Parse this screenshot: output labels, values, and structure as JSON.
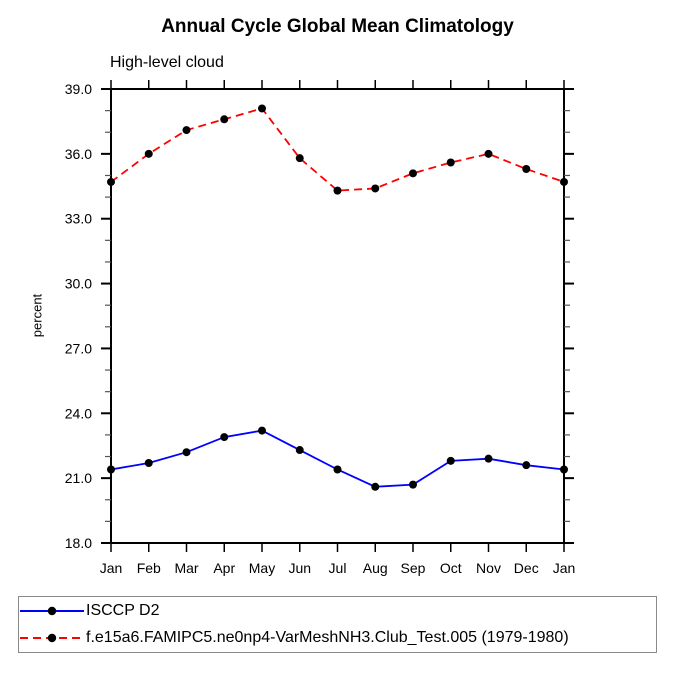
{
  "window": {
    "background": "#ffffff"
  },
  "chart_data": {
    "type": "line",
    "title": "Annual Cycle Global Mean Climatology",
    "subtitle": "High-level cloud",
    "ylabel": "percent",
    "xlabel": "",
    "categories": [
      "Jan",
      "Feb",
      "Mar",
      "Apr",
      "May",
      "Jun",
      "Jul",
      "Aug",
      "Sep",
      "Oct",
      "Nov",
      "Dec",
      "Jan"
    ],
    "ylim": [
      18.0,
      39.0
    ],
    "yticks": [
      39.0,
      36.0,
      33.0,
      30.0,
      27.0,
      24.0,
      21.0,
      18.0
    ],
    "y_minor_step": 1.0,
    "grid": false,
    "legend_position": "bottom-left-box",
    "marker": "black-dot",
    "marker_color": "#000000",
    "axis_color": "#000000",
    "minor_tick_color": "#555555",
    "series": [
      {
        "name": "ISCCP D2",
        "color": "#0000ff",
        "line_style": "solid",
        "values": [
          21.4,
          21.7,
          22.2,
          22.9,
          23.2,
          22.3,
          21.4,
          20.6,
          20.7,
          21.8,
          21.9,
          21.6,
          21.4
        ]
      },
      {
        "name": "f.e15a6.FAMIPC5.ne0np4-VarMeshNH3.Club_Test.005 (1979-1980)",
        "color": "#ff0000",
        "line_style": "dashed",
        "values": [
          34.7,
          36.0,
          37.1,
          37.6,
          38.1,
          35.8,
          34.3,
          34.4,
          35.1,
          35.6,
          36.0,
          35.3,
          34.7
        ]
      }
    ]
  }
}
